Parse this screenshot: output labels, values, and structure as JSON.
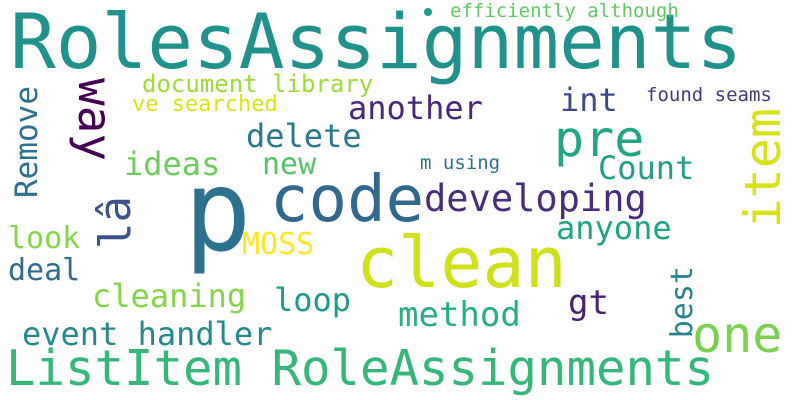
{
  "cloud": {
    "background": "#ffffff",
    "words": [
      {
        "text": "RolesAssignments",
        "color": "#21918c"
      },
      {
        "text": "p",
        "color": "#2c728e"
      },
      {
        "text": "code",
        "color": "#31688e"
      },
      {
        "text": "clean",
        "color": "#d0e11c"
      },
      {
        "text": "ListItem RoleAssignments",
        "color": "#35b779"
      },
      {
        "text": "one",
        "color": "#7ad151"
      },
      {
        "text": "item",
        "color": "#d8e219"
      },
      {
        "text": "pre",
        "color": "#21a585"
      },
      {
        "text": "way",
        "color": "#440154"
      },
      {
        "text": "lâ",
        "color": "#3b528b"
      },
      {
        "text": "developing",
        "color": "#472d7b"
      },
      {
        "text": "another",
        "color": "#482878"
      },
      {
        "text": "Count",
        "color": "#1f9e89"
      },
      {
        "text": "anyone",
        "color": "#20a386"
      },
      {
        "text": "delete",
        "color": "#2a788e"
      },
      {
        "text": "int",
        "color": "#3e4989"
      },
      {
        "text": "Remove",
        "color": "#2c728e"
      },
      {
        "text": "ideas",
        "color": "#6ccd5a"
      },
      {
        "text": "new",
        "color": "#52c569"
      },
      {
        "text": "document library",
        "color": "#a0da39"
      },
      {
        "text": "ve searched",
        "color": "#dde318"
      },
      {
        "text": "MOSS",
        "color": "#fde725"
      },
      {
        "text": "look",
        "color": "#86d549"
      },
      {
        "text": "deal",
        "color": "#2f6c8e"
      },
      {
        "text": "cleaning",
        "color": "#86d549"
      },
      {
        "text": "loop",
        "color": "#1f9a8a"
      },
      {
        "text": "method",
        "color": "#28ae80"
      },
      {
        "text": "gt",
        "color": "#482173"
      },
      {
        "text": "best",
        "color": "#26828e"
      },
      {
        "text": "event handler",
        "color": "#23898e"
      },
      {
        "text": "efficiently although",
        "color": "#5ec962"
      },
      {
        "text": "found seams",
        "color": "#443983"
      },
      {
        "text": "m using",
        "color": "#2c728e"
      }
    ],
    "dot_color": "#1f9e89"
  }
}
